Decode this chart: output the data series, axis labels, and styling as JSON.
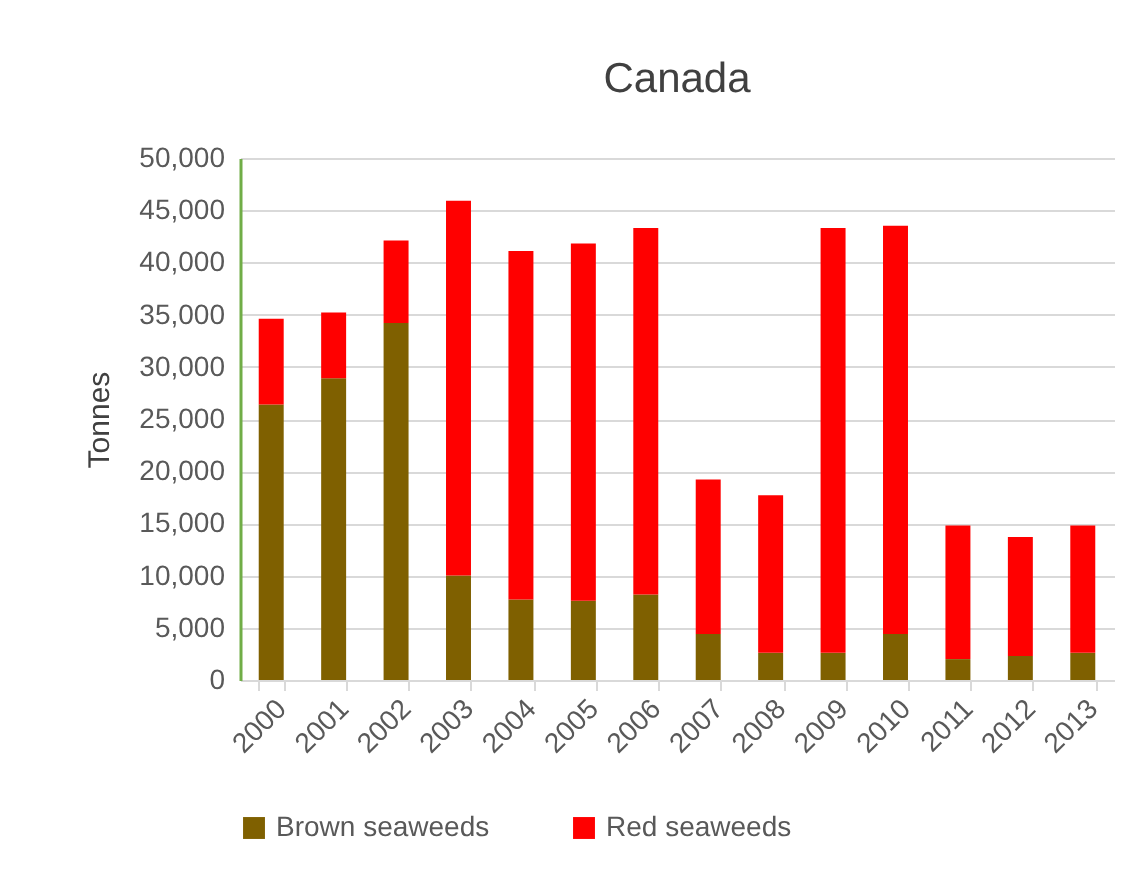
{
  "chart_data": {
    "type": "bar",
    "title": "Canada",
    "ylabel": "Tonnes",
    "stacked": true,
    "categories": [
      "2000",
      "2001",
      "2002",
      "2003",
      "2004",
      "2005",
      "2006",
      "2007",
      "2008",
      "2009",
      "2010",
      "2011",
      "2012",
      "2013"
    ],
    "series": [
      {
        "name": "Brown seaweeds",
        "color": "#7f6000",
        "values": [
          26400,
          28900,
          34200,
          10000,
          7700,
          7600,
          8200,
          4400,
          2600,
          2600,
          4400,
          2000,
          2300,
          2600
        ]
      },
      {
        "name": "Red seaweeds",
        "color": "#ff0000",
        "values": [
          8200,
          6300,
          7900,
          35900,
          33400,
          34200,
          35100,
          14800,
          15100,
          40700,
          39100,
          12800,
          11400,
          12200
        ]
      }
    ],
    "ylim": [
      0,
      50000
    ],
    "yticks": [
      0,
      {
        "value": 5000,
        "label": "5,000"
      },
      {
        "value": 10000,
        "label": "10,000"
      },
      {
        "value": 15000,
        "label": "15,000"
      },
      {
        "value": 20000,
        "label": "20,000"
      },
      {
        "value": 25000,
        "label": "25,000"
      },
      {
        "value": 30000,
        "label": "30,000"
      },
      {
        "value": 35000,
        "label": "35,000"
      },
      {
        "value": 40000,
        "label": "40,000"
      },
      {
        "value": 45000,
        "label": "45,000"
      },
      {
        "value": 50000,
        "label": "50,000"
      }
    ],
    "grid": "y",
    "legend": "bottom"
  }
}
